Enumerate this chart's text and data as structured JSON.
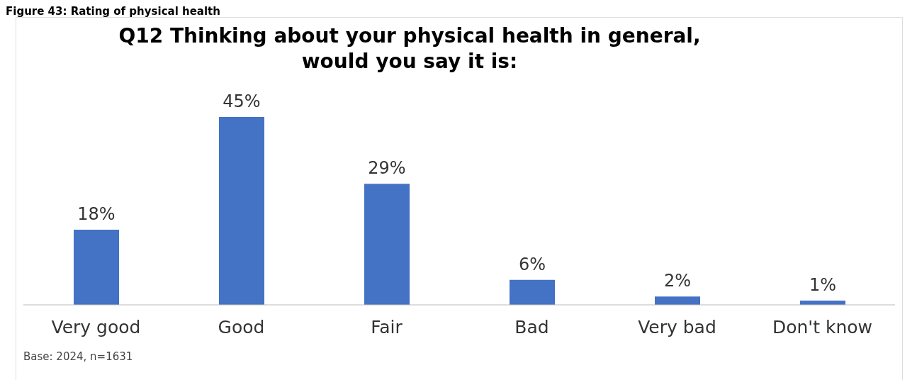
{
  "chart_data": {
    "type": "bar",
    "title": "Q12 Thinking about your physical health in general,\nwould you say it is:",
    "categories": [
      "Very good",
      "Good",
      "Fair",
      "Bad",
      "Very bad",
      "Don't know"
    ],
    "values": [
      18,
      45,
      29,
      6,
      2,
      1
    ],
    "value_labels": [
      "18%",
      "45%",
      "29%",
      "6%",
      "2%",
      "1%"
    ],
    "color": "#4472c4",
    "annotations": [
      "Figure 43: Rating of physical health",
      "Base: 2024, n=1631"
    ]
  }
}
